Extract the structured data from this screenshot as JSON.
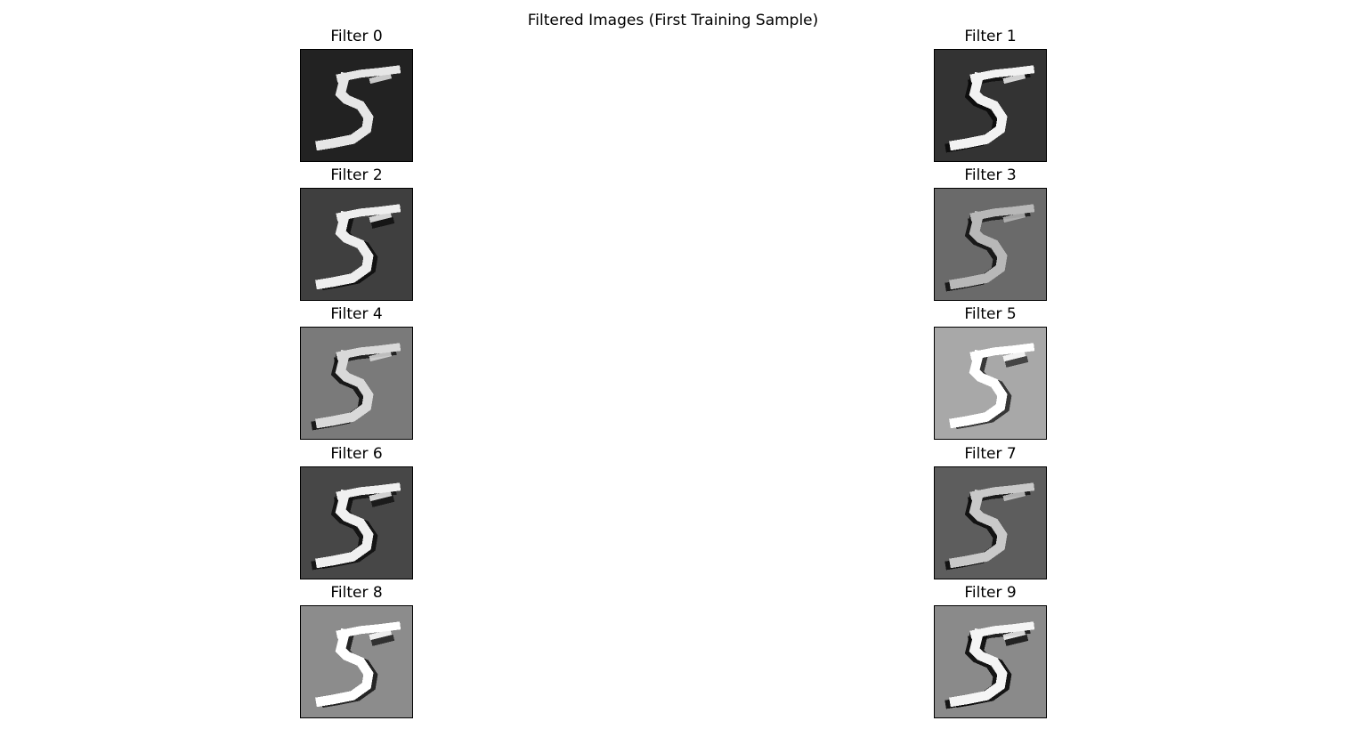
{
  "figure": {
    "title": "Filtered Images (First Training Sample)"
  },
  "panels": [
    {
      "title": "Filter 0",
      "background": "#222222",
      "stroke_color": "#e6e6e6",
      "edge_color": "#111111",
      "edge_side": "none"
    },
    {
      "title": "Filter 1",
      "background": "#333333",
      "stroke_color": "#f2f2f2",
      "edge_color": "#0a0a0a",
      "edge_side": "left"
    },
    {
      "title": "Filter 2",
      "background": "#3f3f3f",
      "stroke_color": "#eeeeee",
      "edge_color": "#0d0d0d",
      "edge_side": "right"
    },
    {
      "title": "Filter 3",
      "background": "#6a6a6a",
      "stroke_color": "#b8b8b8",
      "edge_color": "#111111",
      "edge_side": "left"
    },
    {
      "title": "Filter 4",
      "background": "#7a7a7a",
      "stroke_color": "#d9d9d9",
      "edge_color": "#0e0e0e",
      "edge_side": "left"
    },
    {
      "title": "Filter 5",
      "background": "#a8a8a8",
      "stroke_color": "#ffffff",
      "edge_color": "#2a2a2a",
      "edge_side": "right"
    },
    {
      "title": "Filter 6",
      "background": "#474747",
      "stroke_color": "#f0f0f0",
      "edge_color": "#101010",
      "edge_side": "both"
    },
    {
      "title": "Filter 7",
      "background": "#5d5d5d",
      "stroke_color": "#c9c9c9",
      "edge_color": "#0b0b0b",
      "edge_side": "left"
    },
    {
      "title": "Filter 8",
      "background": "#8c8c8c",
      "stroke_color": "#ffffff",
      "edge_color": "#1a1a1a",
      "edge_side": "right"
    },
    {
      "title": "Filter 9",
      "background": "#8a8a8a",
      "stroke_color": "#f5f5f5",
      "edge_color": "#080808",
      "edge_side": "both"
    }
  ]
}
